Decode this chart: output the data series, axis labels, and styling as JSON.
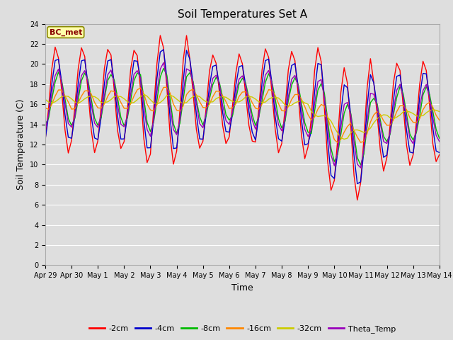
{
  "title": "Soil Temperatures Set A",
  "xlabel": "Time",
  "ylabel": "Soil Temperature (C)",
  "ylim": [
    0,
    24
  ],
  "yticks": [
    0,
    2,
    4,
    6,
    8,
    10,
    12,
    14,
    16,
    18,
    20,
    22,
    24
  ],
  "x_labels": [
    "Apr 29",
    "Apr 30",
    "May 1",
    "May 2",
    "May 3",
    "May 4",
    "May 5",
    "May 6",
    "May 7",
    "May 8",
    "May 9",
    "May 10",
    "May 11",
    "May 12",
    "May 13",
    "May 14"
  ],
  "annotation_text": "BC_met",
  "annotation_bg": "#FFFFAA",
  "annotation_border": "#888800",
  "colors": {
    "2cm": "#FF0000",
    "4cm": "#0000CC",
    "8cm": "#00BB00",
    "16cm": "#FF8800",
    "32cm": "#CCCC00",
    "theta": "#9900BB"
  },
  "legend_labels": [
    "-2cm",
    "-4cm",
    "-8cm",
    "-16cm",
    "-32cm",
    "Theta_Temp"
  ],
  "plot_bg": "#DEDEDE",
  "outer_bg": "#DEDEDE",
  "grid_color": "#FFFFFF",
  "title_fontsize": 11,
  "axis_fontsize": 9,
  "tick_fontsize": 7
}
